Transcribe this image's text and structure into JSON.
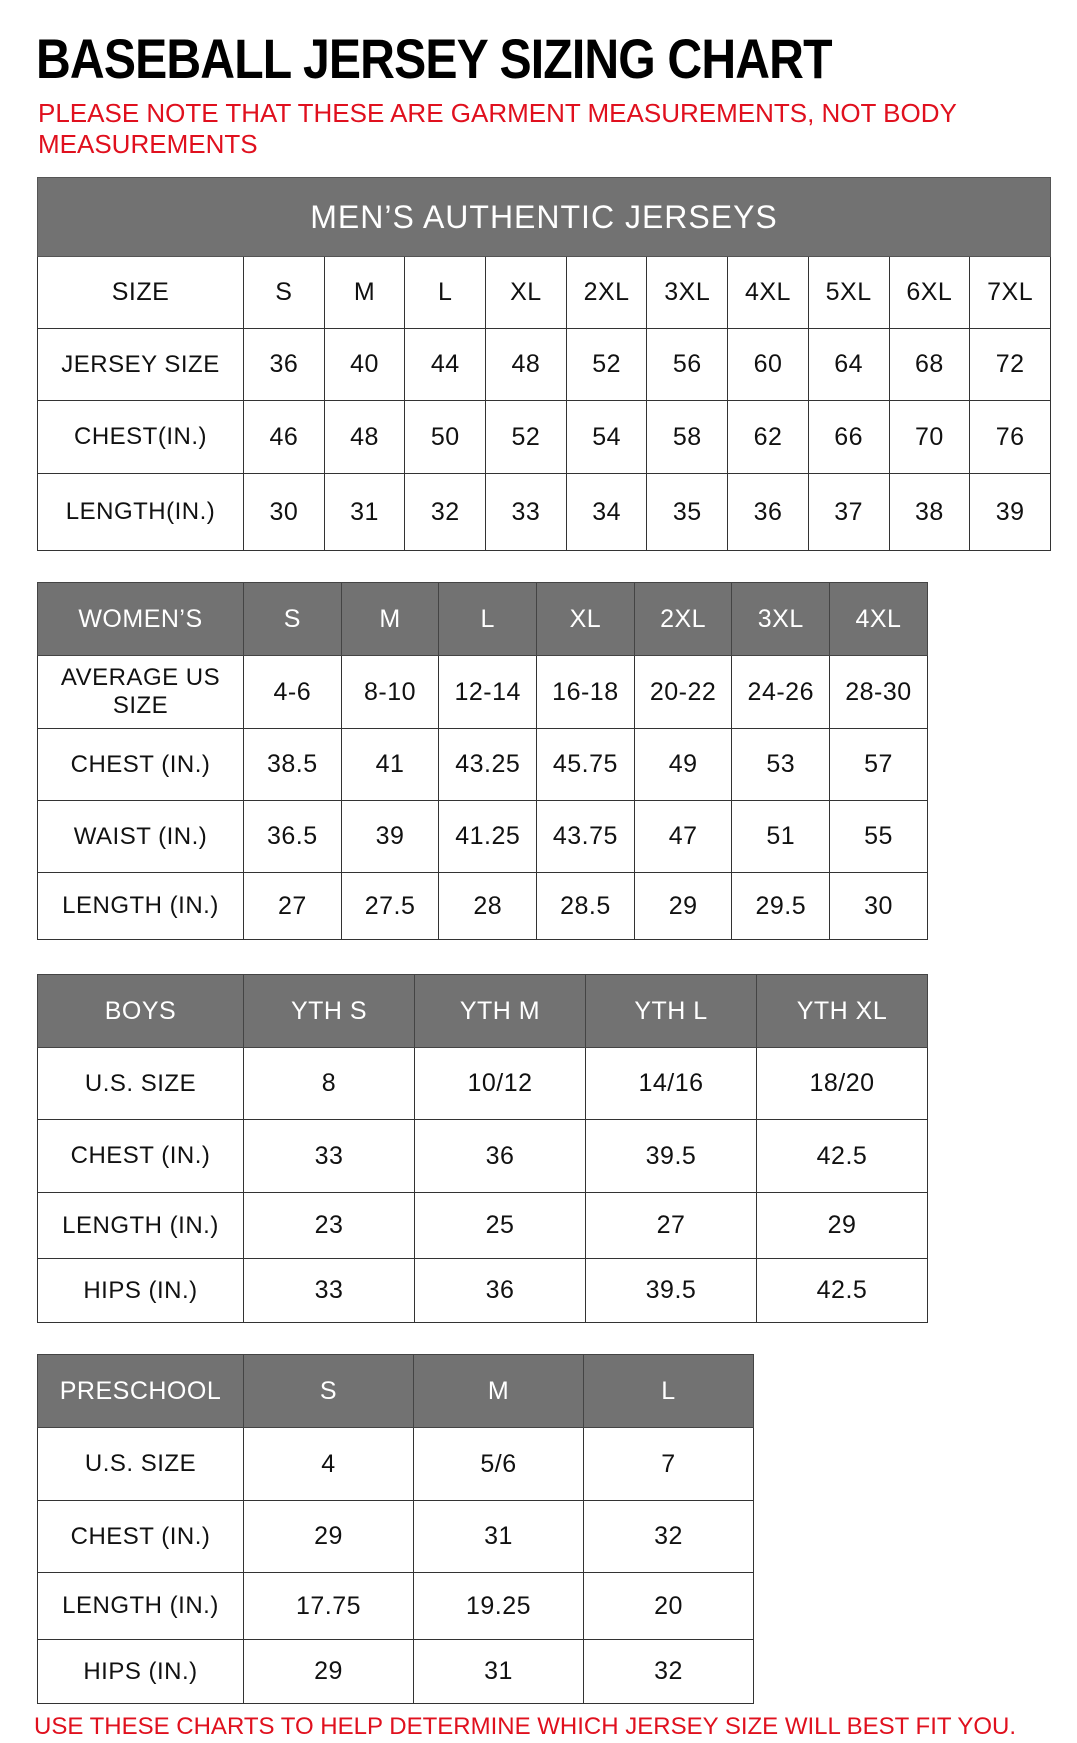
{
  "title": "BASEBALL JERSEY SIZING CHART",
  "note": "PLEASE NOTE THAT THESE ARE GARMENT MEASUREMENTS, NOT BODY MEASUREMENTS",
  "footer": "USE THESE CHARTS TO HELP DETERMINE WHICH JERSEY SIZE WILL BEST FIT YOU.",
  "colors": {
    "header_bg": "#727272",
    "accent_red": "#e0101e"
  },
  "mens": {
    "title": "MEN’S AUTHENTIC JERSEYS",
    "header": [
      "SIZE",
      "S",
      "M",
      "L",
      "XL",
      "2XL",
      "3XL",
      "4XL",
      "5XL",
      "6XL",
      "7XL"
    ],
    "rows": [
      [
        "JERSEY SIZE",
        "36",
        "40",
        "44",
        "48",
        "52",
        "56",
        "60",
        "64",
        "68",
        "72"
      ],
      [
        "CHEST(IN.)",
        "46",
        "48",
        "50",
        "52",
        "54",
        "58",
        "62",
        "66",
        "70",
        "76"
      ],
      [
        "LENGTH(IN.)",
        "30",
        "31",
        "32",
        "33",
        "34",
        "35",
        "36",
        "37",
        "38",
        "39"
      ]
    ]
  },
  "womens": {
    "header": [
      "WOMEN’S",
      "S",
      "M",
      "L",
      "XL",
      "2XL",
      "3XL",
      "4XL"
    ],
    "rows": [
      [
        "AVERAGE US SIZE",
        "4-6",
        "8-10",
        "12-14",
        "16-18",
        "20-22",
        "24-26",
        "28-30"
      ],
      [
        "CHEST (IN.)",
        "38.5",
        "41",
        "43.25",
        "45.75",
        "49",
        "53",
        "57"
      ],
      [
        "WAIST (IN.)",
        "36.5",
        "39",
        "41.25",
        "43.75",
        "47",
        "51",
        "55"
      ],
      [
        "LENGTH (IN.)",
        "27",
        "27.5",
        "28",
        "28.5",
        "29",
        "29.5",
        "30"
      ]
    ]
  },
  "boys": {
    "header": [
      "BOYS",
      "YTH S",
      "YTH M",
      "YTH L",
      "YTH XL"
    ],
    "rows": [
      [
        "U.S. SIZE",
        "8",
        "10/12",
        "14/16",
        "18/20"
      ],
      [
        "CHEST (IN.)",
        "33",
        "36",
        "39.5",
        "42.5"
      ],
      [
        "LENGTH (IN.)",
        "23",
        "25",
        "27",
        "29"
      ],
      [
        "HIPS (IN.)",
        "33",
        "36",
        "39.5",
        "42.5"
      ]
    ]
  },
  "preschool": {
    "header": [
      "PRESCHOOL",
      "S",
      "M",
      "L"
    ],
    "rows": [
      [
        "U.S. SIZE",
        "4",
        "5/6",
        "7"
      ],
      [
        "CHEST (IN.)",
        "29",
        "31",
        "32"
      ],
      [
        "LENGTH (IN.)",
        "17.75",
        "19.25",
        "20"
      ],
      [
        "HIPS (IN.)",
        "29",
        "31",
        "32"
      ]
    ]
  }
}
